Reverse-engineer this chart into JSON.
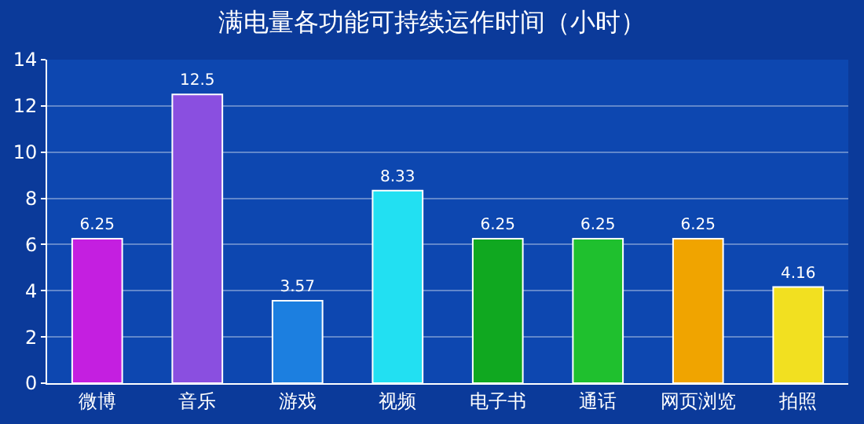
{
  "chart_data": {
    "type": "bar",
    "title": "满电量各功能可持续运作时间（小时）",
    "categories": [
      "微博",
      "音乐",
      "游戏",
      "视频",
      "电子书",
      "通话",
      "网页浏览",
      "拍照"
    ],
    "values": [
      6.25,
      12.5,
      3.57,
      8.33,
      6.25,
      6.25,
      6.25,
      4.16
    ],
    "colors": [
      "#c41fe0",
      "#8a4fe0",
      "#1c7fe0",
      "#22e0f2",
      "#10a820",
      "#1fc02e",
      "#f0a400",
      "#f2e020"
    ],
    "ylim": [
      0,
      14
    ],
    "yticks": [
      0,
      2,
      4,
      6,
      8,
      10,
      12,
      14
    ],
    "grid": "y",
    "data_labels": true
  }
}
